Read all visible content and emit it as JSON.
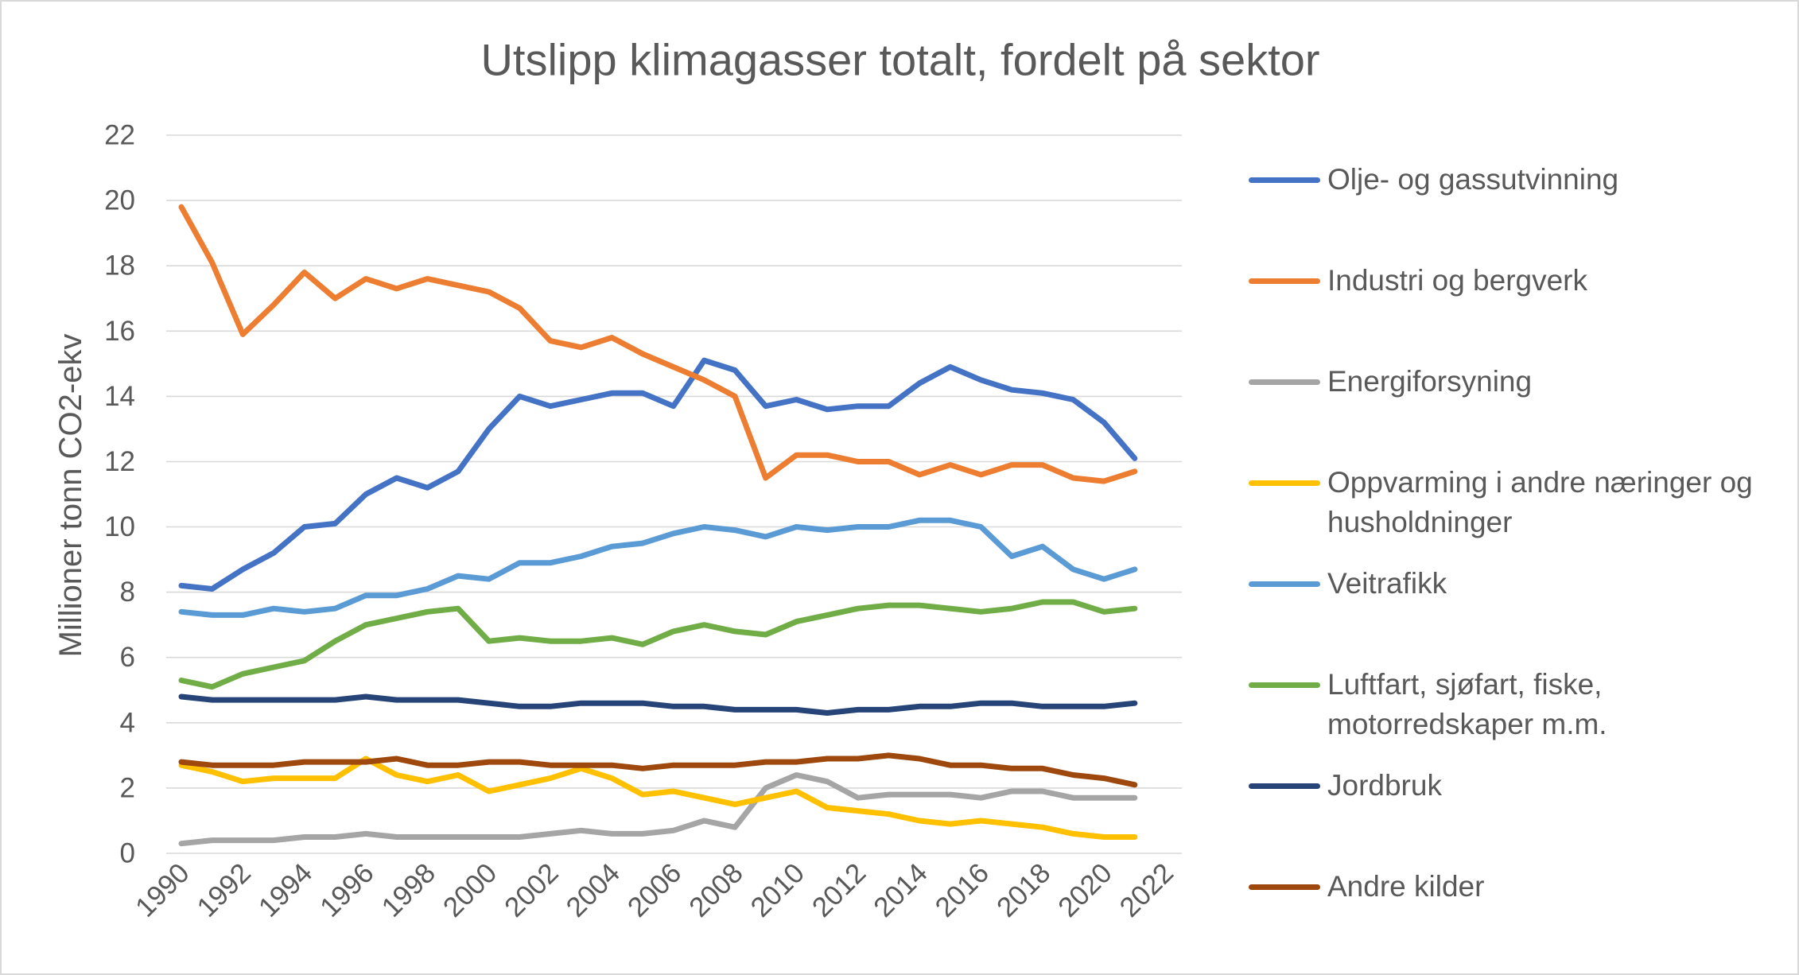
{
  "chart_data": {
    "type": "line",
    "title": "Utslipp klimagasser totalt, fordelt på sektor",
    "xlabel": "",
    "ylabel": "Millioner tonn CO2-ekv",
    "xlim": [
      1990,
      2022
    ],
    "ylim": [
      0,
      22
    ],
    "yticks": [
      0,
      2,
      4,
      6,
      8,
      10,
      12,
      14,
      16,
      18,
      20,
      22
    ],
    "xticks": [
      1990,
      1992,
      1994,
      1996,
      1998,
      2000,
      2002,
      2004,
      2006,
      2008,
      2010,
      2012,
      2014,
      2016,
      2018,
      2020,
      2022
    ],
    "grid": true,
    "legend": "right",
    "x": [
      1990,
      1991,
      1992,
      1993,
      1994,
      1995,
      1996,
      1997,
      1998,
      1999,
      2000,
      2001,
      2002,
      2003,
      2004,
      2005,
      2006,
      2007,
      2008,
      2009,
      2010,
      2011,
      2012,
      2013,
      2014,
      2015,
      2016,
      2017,
      2018,
      2019,
      2020,
      2021
    ],
    "series": [
      {
        "name": "Olje- og gassutvinning",
        "color": "#4472C4",
        "values": [
          8.2,
          8.1,
          8.7,
          9.2,
          10.0,
          10.1,
          11.0,
          11.5,
          11.2,
          11.7,
          13.0,
          14.0,
          13.7,
          13.9,
          14.1,
          14.1,
          13.7,
          15.1,
          14.8,
          13.7,
          13.9,
          13.6,
          13.7,
          13.7,
          14.4,
          14.9,
          14.5,
          14.2,
          14.1,
          13.9,
          13.2,
          12.1
        ]
      },
      {
        "name": "Industri og bergverk",
        "color": "#ED7D31",
        "values": [
          19.8,
          18.1,
          15.9,
          16.8,
          17.8,
          17.0,
          17.6,
          17.3,
          17.6,
          17.4,
          17.2,
          16.7,
          15.7,
          15.5,
          15.8,
          15.3,
          14.9,
          14.5,
          14.0,
          11.5,
          12.2,
          12.2,
          12.0,
          12.0,
          11.6,
          11.9,
          11.6,
          11.9,
          11.9,
          11.5,
          11.4,
          11.7
        ]
      },
      {
        "name": "Energiforsyning",
        "color": "#A5A5A5",
        "values": [
          0.3,
          0.4,
          0.4,
          0.4,
          0.5,
          0.5,
          0.6,
          0.5,
          0.5,
          0.5,
          0.5,
          0.5,
          0.6,
          0.7,
          0.6,
          0.6,
          0.7,
          1.0,
          0.8,
          2.0,
          2.4,
          2.2,
          1.7,
          1.8,
          1.8,
          1.8,
          1.7,
          1.9,
          1.9,
          1.7,
          1.7,
          1.7
        ]
      },
      {
        "name": "Oppvarming i andre næringer og husholdninger",
        "color": "#FFC000",
        "values": [
          2.7,
          2.5,
          2.2,
          2.3,
          2.3,
          2.3,
          2.9,
          2.4,
          2.2,
          2.4,
          1.9,
          2.1,
          2.3,
          2.6,
          2.3,
          1.8,
          1.9,
          1.7,
          1.5,
          1.7,
          1.9,
          1.4,
          1.3,
          1.2,
          1.0,
          0.9,
          1.0,
          0.9,
          0.8,
          0.6,
          0.5,
          0.5
        ]
      },
      {
        "name": "Veitrafikk",
        "color": "#5B9BD5",
        "values": [
          7.4,
          7.3,
          7.3,
          7.5,
          7.4,
          7.5,
          7.9,
          7.9,
          8.1,
          8.5,
          8.4,
          8.9,
          8.9,
          9.1,
          9.4,
          9.5,
          9.8,
          10.0,
          9.9,
          9.7,
          10.0,
          9.9,
          10.0,
          10.0,
          10.2,
          10.2,
          10.0,
          9.1,
          9.4,
          8.7,
          8.4,
          8.7
        ]
      },
      {
        "name": "Luftfart, sjøfart, fiske, motorredskaper m.m.",
        "color": "#70AD47",
        "values": [
          5.3,
          5.1,
          5.5,
          5.7,
          5.9,
          6.5,
          7.0,
          7.2,
          7.4,
          7.5,
          6.5,
          6.6,
          6.5,
          6.5,
          6.6,
          6.4,
          6.8,
          7.0,
          6.8,
          6.7,
          7.1,
          7.3,
          7.5,
          7.6,
          7.6,
          7.5,
          7.4,
          7.5,
          7.7,
          7.7,
          7.4,
          7.5
        ]
      },
      {
        "name": "Jordbruk",
        "color": "#264478",
        "values": [
          4.8,
          4.7,
          4.7,
          4.7,
          4.7,
          4.7,
          4.8,
          4.7,
          4.7,
          4.7,
          4.6,
          4.5,
          4.5,
          4.6,
          4.6,
          4.6,
          4.5,
          4.5,
          4.4,
          4.4,
          4.4,
          4.3,
          4.4,
          4.4,
          4.5,
          4.5,
          4.6,
          4.6,
          4.5,
          4.5,
          4.5,
          4.6
        ]
      },
      {
        "name": "Andre kilder",
        "color": "#9E480E",
        "values": [
          2.8,
          2.7,
          2.7,
          2.7,
          2.8,
          2.8,
          2.8,
          2.9,
          2.7,
          2.7,
          2.8,
          2.8,
          2.7,
          2.7,
          2.7,
          2.6,
          2.7,
          2.7,
          2.7,
          2.8,
          2.8,
          2.9,
          2.9,
          3.0,
          2.9,
          2.7,
          2.7,
          2.6,
          2.6,
          2.4,
          2.3,
          2.1
        ]
      }
    ]
  }
}
